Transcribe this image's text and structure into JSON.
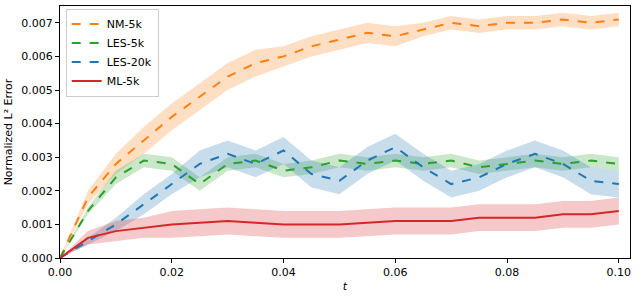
{
  "chart_data": {
    "type": "line",
    "x_label": "t",
    "y_label": "Normalized L² Error",
    "x": [
      0,
      0.005,
      0.01,
      0.015,
      0.02,
      0.025,
      0.03,
      0.035,
      0.04,
      0.045,
      0.05,
      0.055,
      0.06,
      0.065,
      0.07,
      0.075,
      0.08,
      0.085,
      0.09,
      0.095,
      0.1
    ],
    "series": [
      {
        "name": "NM-5k",
        "color": "#ff7f0e",
        "line_style": "dash",
        "values": [
          0,
          0.0018,
          0.0028,
          0.0035,
          0.0042,
          0.0048,
          0.0054,
          0.0058,
          0.006,
          0.0063,
          0.0065,
          0.0067,
          0.0066,
          0.0068,
          0.007,
          0.0069,
          0.007,
          0.007,
          0.0071,
          0.007,
          0.0071
        ],
        "error": [
          0,
          0.0002,
          0.0003,
          0.0004,
          0.0004,
          0.0004,
          0.0004,
          0.0004,
          0.0003,
          0.0003,
          0.0003,
          0.0003,
          0.0003,
          0.0002,
          0.0002,
          0.0002,
          0.0002,
          0.0002,
          0.0002,
          0.0002,
          0.0002
        ]
      },
      {
        "name": "LES-5k",
        "color": "#2ca02c",
        "line_style": "dash",
        "values": [
          0,
          0.0014,
          0.0024,
          0.0029,
          0.0028,
          0.0022,
          0.0028,
          0.0029,
          0.0026,
          0.0027,
          0.0029,
          0.0028,
          0.0029,
          0.0028,
          0.0029,
          0.0027,
          0.0028,
          0.0029,
          0.0028,
          0.0029,
          0.0028
        ],
        "error": [
          0,
          0.0001,
          0.0002,
          0.0002,
          0.0002,
          0.0002,
          0.0002,
          0.0002,
          0.0002,
          0.0002,
          0.0002,
          0.0002,
          0.0002,
          0.0002,
          0.0002,
          0.0002,
          0.0002,
          0.0002,
          0.0002,
          0.0002,
          0.0002
        ]
      },
      {
        "name": "LES-20k",
        "color": "#1f77b4",
        "line_style": "dash",
        "values": [
          0,
          0.0005,
          0.001,
          0.0016,
          0.0022,
          0.0028,
          0.0031,
          0.0028,
          0.0032,
          0.0025,
          0.0023,
          0.0029,
          0.0033,
          0.0027,
          0.0022,
          0.0024,
          0.0028,
          0.0031,
          0.0028,
          0.0023,
          0.0022
        ],
        "error": [
          0,
          0.0001,
          0.0002,
          0.0003,
          0.0003,
          0.0004,
          0.0004,
          0.0004,
          0.0004,
          0.0004,
          0.0004,
          0.0004,
          0.0004,
          0.0004,
          0.0004,
          0.0004,
          0.0004,
          0.0004,
          0.0004,
          0.0004,
          0.0004
        ]
      },
      {
        "name": "ML-5k",
        "color": "#d62728",
        "line_style": "solid",
        "values": [
          0,
          0.0006,
          0.0008,
          0.0009,
          0.001,
          0.00105,
          0.0011,
          0.00105,
          0.001,
          0.001,
          0.001,
          0.00105,
          0.0011,
          0.0011,
          0.0011,
          0.0012,
          0.0012,
          0.0012,
          0.0013,
          0.0013,
          0.0014
        ],
        "error": [
          0,
          0.0002,
          0.0003,
          0.0003,
          0.0004,
          0.0004,
          0.0004,
          0.0004,
          0.0004,
          0.0004,
          0.0004,
          0.0004,
          0.0004,
          0.0004,
          0.0004,
          0.0004,
          0.0004,
          0.0004,
          0.0004,
          0.0004,
          0.0004
        ]
      }
    ],
    "xlim": [
      0,
      0.102
    ],
    "ylim": [
      0,
      0.0075
    ],
    "xticks": [
      {
        "value": 0,
        "label": "0.00"
      },
      {
        "value": 0.02,
        "label": "0.02"
      },
      {
        "value": 0.04,
        "label": "0.04"
      },
      {
        "value": 0.06,
        "label": "0.06"
      },
      {
        "value": 0.08,
        "label": "0.08"
      },
      {
        "value": 0.1,
        "label": "0.10"
      }
    ],
    "yticks": [
      {
        "value": 0,
        "label": "0.000"
      },
      {
        "value": 0.001,
        "label": "0.001"
      },
      {
        "value": 0.002,
        "label": "0.002"
      },
      {
        "value": 0.003,
        "label": "0.003"
      },
      {
        "value": 0.004,
        "label": "0.004"
      },
      {
        "value": 0.005,
        "label": "0.005"
      },
      {
        "value": 0.006,
        "label": "0.006"
      },
      {
        "value": 0.007,
        "label": "0.007"
      }
    ],
    "grid": false,
    "legend": "upper left"
  }
}
